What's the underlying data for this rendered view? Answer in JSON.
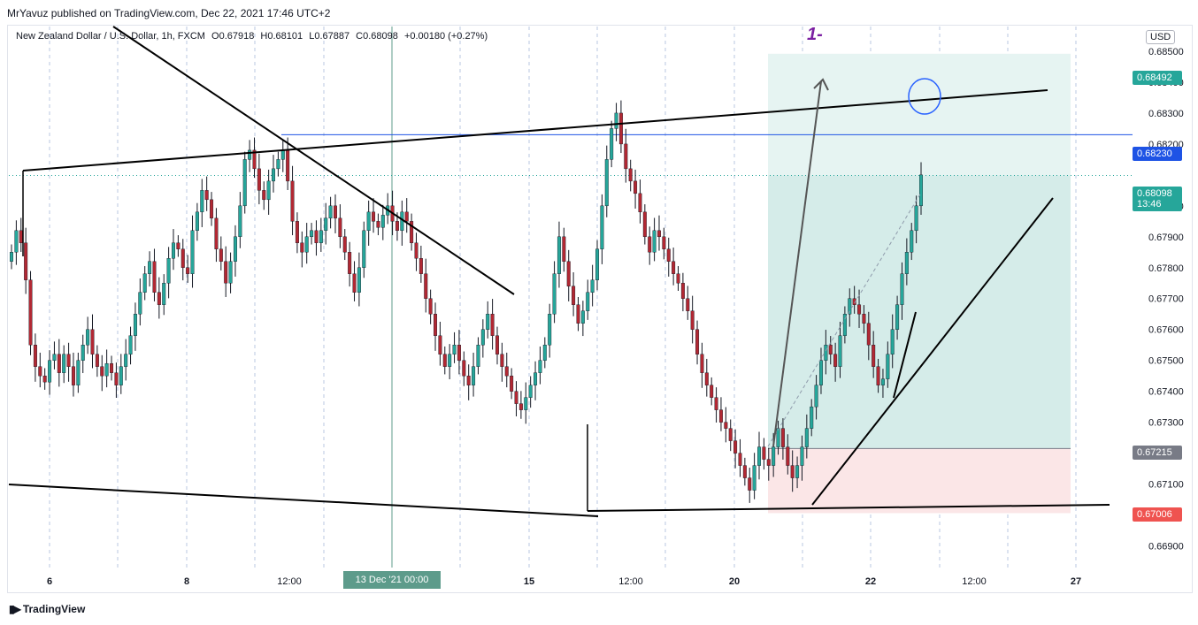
{
  "header": {
    "published": "MrYavuz published on TradingView.com, Dec 22, 2021 17:46 UTC+2"
  },
  "legend": {
    "symbol": "New Zealand Dollar / U.S. Dollar, 1h, FXCM",
    "open": "O0.67918",
    "high": "H0.68101",
    "low": "L0.67887",
    "close": "C0.68098",
    "change": "+0.00180 (+0.27%)"
  },
  "currency_button": "USD",
  "annotation_text": "1-",
  "crosshair_time_label": "13 Dec '21   00:00",
  "footer": {
    "brand": "TradingView"
  },
  "price_tags": [
    {
      "label": "0.68492",
      "color": "#26a69a"
    },
    {
      "label": "0.68230",
      "color": "#1e53e5"
    },
    {
      "label": "0.68098",
      "sublabel": "13:46",
      "color": "#26a69a"
    },
    {
      "label": "0.67215",
      "color": "#787b86"
    },
    {
      "label": "0.67006",
      "color": "#ef5350"
    }
  ],
  "colors": {
    "up": "#26a69a",
    "down": "#b22833",
    "target_zone": "#d5ece9",
    "stop_zone": "#fbe6e7",
    "hline": "#1e53e5"
  },
  "chart_data": {
    "type": "candlestick",
    "x_tick_labels": [
      "6",
      "8",
      "12:00",
      "13 Dec '21",
      "15",
      "12:00",
      "20",
      "22",
      "12:00",
      "27"
    ],
    "y_tick_labels": [
      "0.68500",
      "0.68400",
      "0.68300",
      "0.68200",
      "0.68000",
      "0.67900",
      "0.67800",
      "0.67700",
      "0.67600",
      "0.67500",
      "0.67400",
      "0.67300",
      "0.67100",
      "0.66900"
    ],
    "ylim": [
      0.6683,
      0.6858
    ],
    "horizontal_line": 0.6823,
    "current_price": 0.68098,
    "long_position": {
      "entry": 0.67215,
      "target": 0.68492,
      "stop": 0.67006
    },
    "close_series": [
      0.6785,
      0.6792,
      0.6788,
      0.6776,
      0.6755,
      0.6748,
      0.6745,
      0.6743,
      0.675,
      0.6752,
      0.6746,
      0.6752,
      0.6748,
      0.6742,
      0.675,
      0.6755,
      0.676,
      0.6752,
      0.6748,
      0.6745,
      0.6749,
      0.6746,
      0.6742,
      0.6748,
      0.6752,
      0.6758,
      0.6765,
      0.6772,
      0.6778,
      0.6782,
      0.6772,
      0.6768,
      0.6775,
      0.6783,
      0.6788,
      0.6786,
      0.678,
      0.6778,
      0.6792,
      0.6798,
      0.6805,
      0.6802,
      0.6796,
      0.6786,
      0.6782,
      0.6775,
      0.6782,
      0.679,
      0.68,
      0.6815,
      0.6818,
      0.6812,
      0.6805,
      0.6802,
      0.6808,
      0.6812,
      0.6815,
      0.6818,
      0.6808,
      0.6795,
      0.6788,
      0.6785,
      0.679,
      0.6792,
      0.6788,
      0.6792,
      0.6796,
      0.68,
      0.6796,
      0.679,
      0.6785,
      0.6778,
      0.6772,
      0.678,
      0.6792,
      0.6798,
      0.6795,
      0.6793,
      0.6797,
      0.68,
      0.6795,
      0.6792,
      0.6798,
      0.6795,
      0.6788,
      0.6783,
      0.6778,
      0.677,
      0.6765,
      0.6758,
      0.6752,
      0.6748,
      0.6752,
      0.6755,
      0.675,
      0.6745,
      0.6742,
      0.6748,
      0.6755,
      0.676,
      0.6765,
      0.6758,
      0.6752,
      0.6748,
      0.6745,
      0.674,
      0.6736,
      0.6734,
      0.6738,
      0.6742,
      0.6746,
      0.675,
      0.6755,
      0.6765,
      0.6778,
      0.679,
      0.6782,
      0.6774,
      0.6768,
      0.6762,
      0.6766,
      0.6772,
      0.6776,
      0.6786,
      0.68,
      0.6815,
      0.6825,
      0.683,
      0.682,
      0.6812,
      0.6808,
      0.6804,
      0.6798,
      0.679,
      0.6785,
      0.6792,
      0.679,
      0.6786,
      0.6782,
      0.6778,
      0.6775,
      0.677,
      0.6766,
      0.676,
      0.6752,
      0.6746,
      0.6742,
      0.6738,
      0.6734,
      0.673,
      0.6728,
      0.6724,
      0.672,
      0.6716,
      0.6712,
      0.6708,
      0.6716,
      0.6722,
      0.6718,
      0.6716,
      0.6722,
      0.6728,
      0.6722,
      0.6716,
      0.6712,
      0.6716,
      0.6722,
      0.6728,
      0.6735,
      0.6742,
      0.675,
      0.6755,
      0.6752,
      0.6748,
      0.6758,
      0.6765,
      0.677,
      0.6768,
      0.6765,
      0.6762,
      0.6755,
      0.6748,
      0.6742,
      0.6744,
      0.6752,
      0.676,
      0.6768,
      0.6778,
      0.6785,
      0.6792,
      0.68,
      0.681
    ]
  }
}
